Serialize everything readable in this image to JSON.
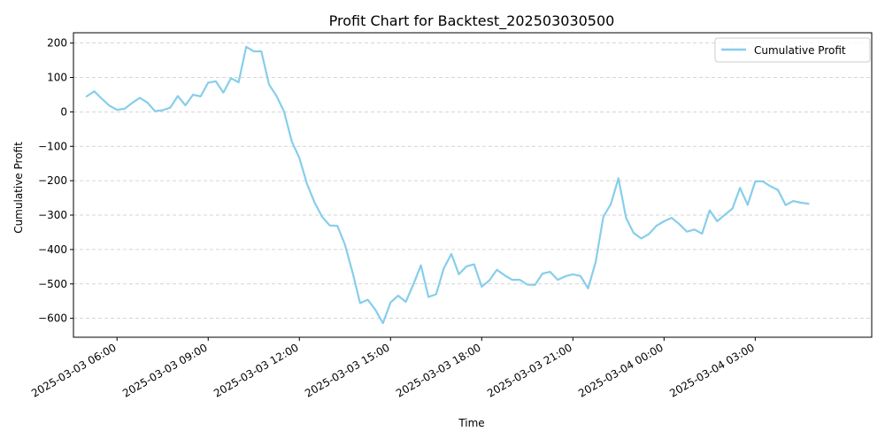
{
  "chart_data": {
    "type": "line",
    "title": "Profit Chart for Backtest_202503030500",
    "xlabel": "Time",
    "ylabel": "Cumulative Profit",
    "ylim": [
      -655,
      230
    ],
    "xlim": [
      "2025-03-03 04:34",
      "2025-03-04 06:50"
    ],
    "yticks": [
      -600,
      -500,
      -400,
      -300,
      -200,
      -100,
      0,
      100,
      200
    ],
    "xticks": [
      "2025-03-03 06:00",
      "2025-03-03 09:00",
      "2025-03-03 12:00",
      "2025-03-03 15:00",
      "2025-03-03 18:00",
      "2025-03-03 21:00",
      "2025-03-04 00:00",
      "2025-03-04 03:00"
    ],
    "grid": "y-axis, dashed",
    "legend": {
      "placement": "upper right",
      "entries": [
        "Cumulative Profit"
      ]
    },
    "series": [
      {
        "name": "Cumulative Profit",
        "color": "#87ceeb",
        "points": [
          [
            "2025-03-03 05:00",
            45
          ],
          [
            "2025-03-03 05:15",
            60
          ],
          [
            "2025-03-03 05:30",
            38
          ],
          [
            "2025-03-03 05:45",
            18
          ],
          [
            "2025-03-03 06:00",
            6
          ],
          [
            "2025-03-03 06:15",
            9
          ],
          [
            "2025-03-03 06:30",
            26
          ],
          [
            "2025-03-03 06:45",
            41
          ],
          [
            "2025-03-03 07:00",
            27
          ],
          [
            "2025-03-03 07:15",
            2
          ],
          [
            "2025-03-03 07:30",
            5
          ],
          [
            "2025-03-03 07:45",
            12
          ],
          [
            "2025-03-03 08:00",
            46
          ],
          [
            "2025-03-03 08:15",
            19
          ],
          [
            "2025-03-03 08:30",
            50
          ],
          [
            "2025-03-03 08:45",
            45
          ],
          [
            "2025-03-03 09:00",
            85
          ],
          [
            "2025-03-03 09:15",
            89
          ],
          [
            "2025-03-03 09:30",
            56
          ],
          [
            "2025-03-03 09:45",
            98
          ],
          [
            "2025-03-03 10:00",
            86
          ],
          [
            "2025-03-03 10:15",
            189
          ],
          [
            "2025-03-03 10:30",
            176
          ],
          [
            "2025-03-03 10:45",
            176
          ],
          [
            "2025-03-03 11:00",
            80
          ],
          [
            "2025-03-03 11:15",
            46
          ],
          [
            "2025-03-03 11:30",
            0
          ],
          [
            "2025-03-03 11:45",
            -86
          ],
          [
            "2025-03-03 12:00",
            -134
          ],
          [
            "2025-03-03 12:15",
            -209
          ],
          [
            "2025-03-03 12:30",
            -263
          ],
          [
            "2025-03-03 12:45",
            -305
          ],
          [
            "2025-03-03 13:00",
            -330
          ],
          [
            "2025-03-03 13:15",
            -331
          ],
          [
            "2025-03-03 13:30",
            -386
          ],
          [
            "2025-03-03 13:45",
            -467
          ],
          [
            "2025-03-03 14:00",
            -556
          ],
          [
            "2025-03-03 14:15",
            -546
          ],
          [
            "2025-03-03 14:30",
            -575
          ],
          [
            "2025-03-03 14:45",
            -614
          ],
          [
            "2025-03-03 15:00",
            -554
          ],
          [
            "2025-03-03 15:15",
            -534
          ],
          [
            "2025-03-03 15:30",
            -552
          ],
          [
            "2025-03-03 15:45",
            -502
          ],
          [
            "2025-03-03 16:00",
            -446
          ],
          [
            "2025-03-03 16:15",
            -538
          ],
          [
            "2025-03-03 16:30",
            -530
          ],
          [
            "2025-03-03 16:45",
            -455
          ],
          [
            "2025-03-03 17:00",
            -413
          ],
          [
            "2025-03-03 17:15",
            -472
          ],
          [
            "2025-03-03 17:30",
            -449
          ],
          [
            "2025-03-03 17:45",
            -443
          ],
          [
            "2025-03-03 18:00",
            -508
          ],
          [
            "2025-03-03 18:15",
            -490
          ],
          [
            "2025-03-03 18:30",
            -459
          ],
          [
            "2025-03-03 18:45",
            -475
          ],
          [
            "2025-03-03 19:00",
            -488
          ],
          [
            "2025-03-03 19:15",
            -488
          ],
          [
            "2025-03-03 19:30",
            -502
          ],
          [
            "2025-03-03 19:45",
            -503
          ],
          [
            "2025-03-03 20:00",
            -470
          ],
          [
            "2025-03-03 20:15",
            -465
          ],
          [
            "2025-03-03 20:30",
            -488
          ],
          [
            "2025-03-03 20:45",
            -478
          ],
          [
            "2025-03-03 21:00",
            -472
          ],
          [
            "2025-03-03 21:15",
            -477
          ],
          [
            "2025-03-03 21:30",
            -513
          ],
          [
            "2025-03-03 21:45",
            -436
          ],
          [
            "2025-03-03 22:00",
            -305
          ],
          [
            "2025-03-03 22:15",
            -268
          ],
          [
            "2025-03-03 22:30",
            -193
          ],
          [
            "2025-03-03 22:45",
            -308
          ],
          [
            "2025-03-03 23:00",
            -352
          ],
          [
            "2025-03-03 23:15",
            -368
          ],
          [
            "2025-03-03 23:30",
            -355
          ],
          [
            "2025-03-03 23:45",
            -331
          ],
          [
            "2025-03-04 00:00",
            -318
          ],
          [
            "2025-03-04 00:15",
            -308
          ],
          [
            "2025-03-04 00:30",
            -326
          ],
          [
            "2025-03-04 00:45",
            -348
          ],
          [
            "2025-03-04 01:00",
            -342
          ],
          [
            "2025-03-04 01:15",
            -354
          ],
          [
            "2025-03-04 01:30",
            -286
          ],
          [
            "2025-03-04 01:45",
            -318
          ],
          [
            "2025-03-04 02:00",
            -299
          ],
          [
            "2025-03-04 02:15",
            -281
          ],
          [
            "2025-03-04 02:30",
            -221
          ],
          [
            "2025-03-04 02:45",
            -270
          ],
          [
            "2025-03-04 03:00",
            -202
          ],
          [
            "2025-03-04 03:15",
            -202
          ],
          [
            "2025-03-04 03:30",
            -216
          ],
          [
            "2025-03-04 03:45",
            -227
          ],
          [
            "2025-03-04 04:00",
            -271
          ],
          [
            "2025-03-04 04:15",
            -259
          ],
          [
            "2025-03-04 04:30",
            -264
          ],
          [
            "2025-03-04 04:45",
            -267
          ]
        ]
      }
    ]
  }
}
